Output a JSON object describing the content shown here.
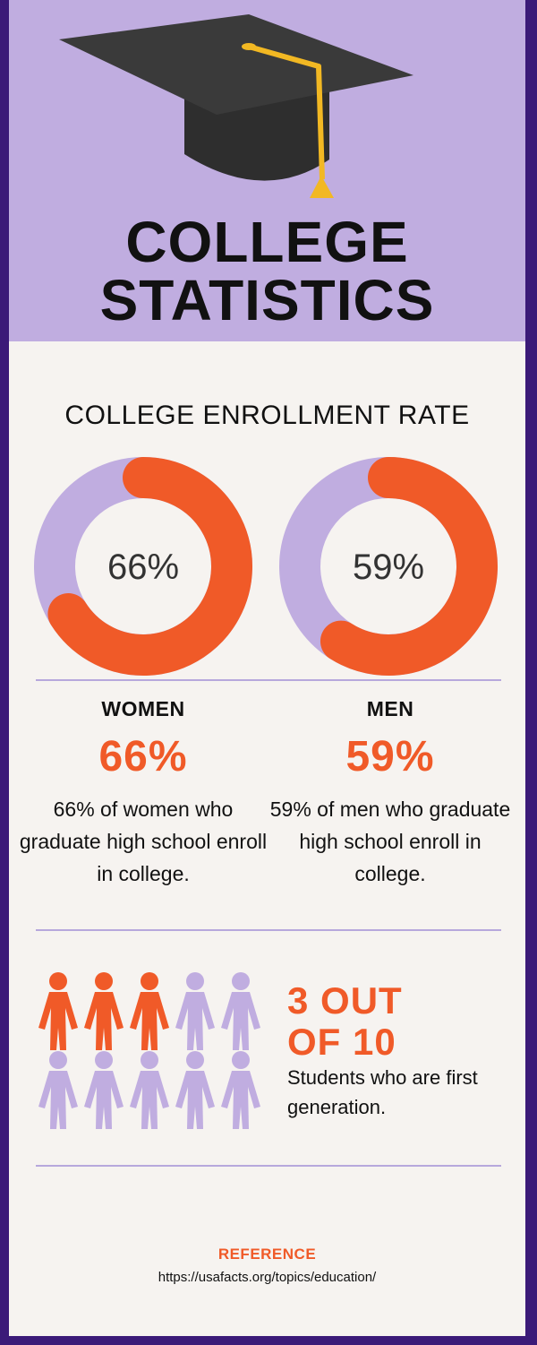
{
  "title": {
    "line1": "COLLEGE",
    "line2": "STATISTICS"
  },
  "enrollment": {
    "heading": "COLLEGE ENROLLMENT RATE",
    "women": {
      "label": "WOMEN",
      "percent": "66%",
      "value": 66,
      "description": "66% of women who graduate high school enroll in college."
    },
    "men": {
      "label": "MEN",
      "percent": "59%",
      "value": 59,
      "description": "59% of men who graduate high school enroll in college."
    }
  },
  "first_generation": {
    "headline_line1": "3 OUT",
    "headline_line2": "OF 10",
    "description": "Students who are first generation.",
    "highlighted": 3,
    "total": 10
  },
  "reference": {
    "label": "REFERENCE",
    "url": "https://usafacts.org/topics/education/"
  },
  "colors": {
    "accent": "#f05a28",
    "lavender": "#c0ade0",
    "border": "#3b1a78",
    "background": "#f6f3f0",
    "cap": "#2e2e2e",
    "tassel": "#f2b823"
  }
}
